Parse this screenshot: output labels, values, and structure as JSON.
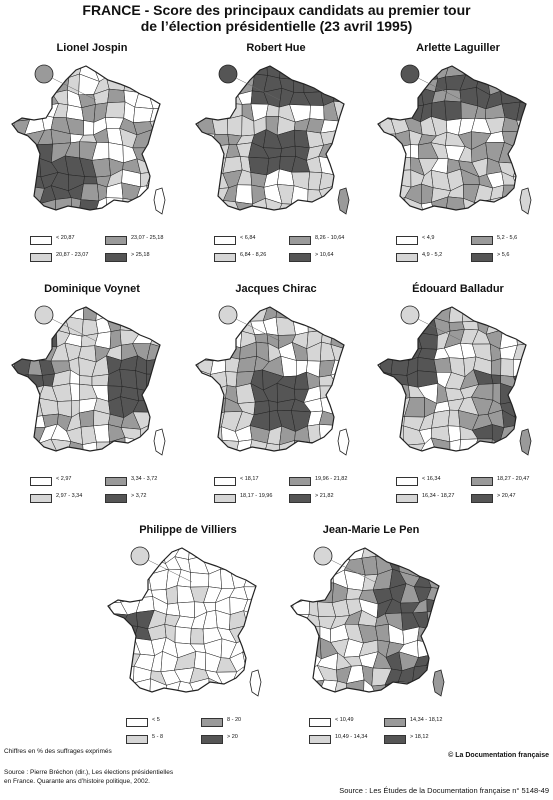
{
  "title_line1": "FRANCE -  Score des principaux candidats au premier tour",
  "title_line2": "de l’élection présidentielle (23 avril 1995)",
  "colors": {
    "c1": "#ffffff",
    "c2": "#d6d6d6",
    "c3": "#9a9a9a",
    "c4": "#555555",
    "border": "#222222"
  },
  "maps": [
    {
      "name": "Lionel Jospin",
      "legend": [
        "< 20,87",
        "20,87 - 23,07",
        "23,07 - 25,18",
        "> 25,18"
      ]
    },
    {
      "name": "Robert Hue",
      "legend": [
        "< 6,84",
        "6,84 - 8,26",
        "8,26 - 10,64",
        "> 10,64"
      ]
    },
    {
      "name": "Arlette Laguiller",
      "legend": [
        "< 4,9",
        "4,9 - 5,2",
        "5,2 - 5,6",
        "> 5,6"
      ]
    },
    {
      "name": "Dominique Voynet",
      "legend": [
        "< 2,97",
        "2,97 - 3,34",
        "3,34 - 3,72",
        "> 3,72"
      ]
    },
    {
      "name": "Jacques Chirac",
      "legend": [
        "< 18,17",
        "18,17 - 19,96",
        "19,96 - 21,82",
        "> 21,82"
      ]
    },
    {
      "name": "Édouard Balladur",
      "legend": [
        "< 16,34",
        "16,34 - 18,27",
        "18,27 - 20,47",
        "> 20,47"
      ]
    },
    {
      "name": "Philippe de Villiers",
      "legend": [
        "< 5",
        "5 - 8",
        "8 - 20",
        "> 20"
      ]
    },
    {
      "name": "Jean-Marie Le Pen",
      "legend": [
        "< 10,49",
        "10,49 - 14,34",
        "14,34 - 18,12",
        "> 18,12"
      ]
    }
  ],
  "footnote_units": "Chiffres en % des suffrages exprimés",
  "source_line1": "Source : Pierre Bréchon (dir.), Les élections présidentielles",
  "source_line2": "en France. Quarante ans d’histoire politique, 2002.",
  "copyright": "© La Documentation française",
  "bottom_source": "Source : Les Études de la Documentation française n° 5148-49"
}
